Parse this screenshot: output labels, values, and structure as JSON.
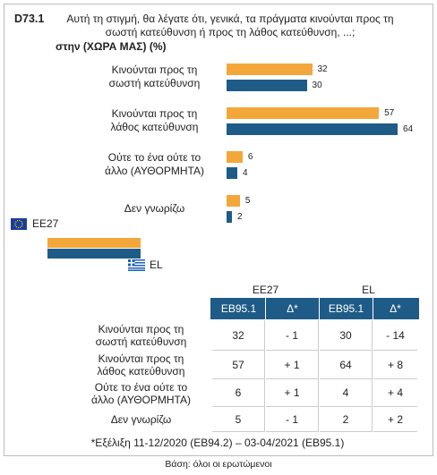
{
  "header": {
    "code": "D73.1",
    "question": "Αυτή τη στιγμή, θα λέγατε ότι, γενικά, τα πράγματα κινούνται προς τη\nσωστή κατεύθυνση ή προς τη λάθος κατεύθυνση, ...;",
    "question_bold": "στην (ΧΩΡΑ ΜΑΣ)  (%)"
  },
  "chart_data": {
    "type": "bar",
    "orientation": "horizontal",
    "categories": [
      "Κινούνται προς τη\nσωστή κατεύθυνση",
      "Κινούνται προς τη\nλάθος κατεύθυνση",
      "Ούτε το ένα ούτε το\nάλλο (ΑΥΘΟΡΜΗΤΑ)",
      "Δεν γνωρίζω"
    ],
    "series": [
      {
        "name": "EE27",
        "color": "#f3a73a",
        "values": [
          32,
          57,
          6,
          5
        ]
      },
      {
        "name": "EL",
        "color": "#1f5b87",
        "values": [
          30,
          64,
          4,
          2
        ]
      }
    ]
  },
  "table": {
    "columns": [
      "EB95.1",
      "Δ*",
      "EB95.1",
      "Δ*"
    ],
    "rows": [
      [
        32,
        "- 1",
        30,
        "- 14"
      ],
      [
        57,
        "+ 1",
        64,
        "+ 8"
      ],
      [
        6,
        "+ 1",
        4,
        "+ 4"
      ],
      [
        5,
        "- 1",
        2,
        "+ 2"
      ]
    ]
  },
  "footnote": "*Εξέλιξη 11-12/2020 (EB94.2) – 03-04/2021 (EB95.1)",
  "base": "Βάση: όλοι οι ερωτώμενοι"
}
